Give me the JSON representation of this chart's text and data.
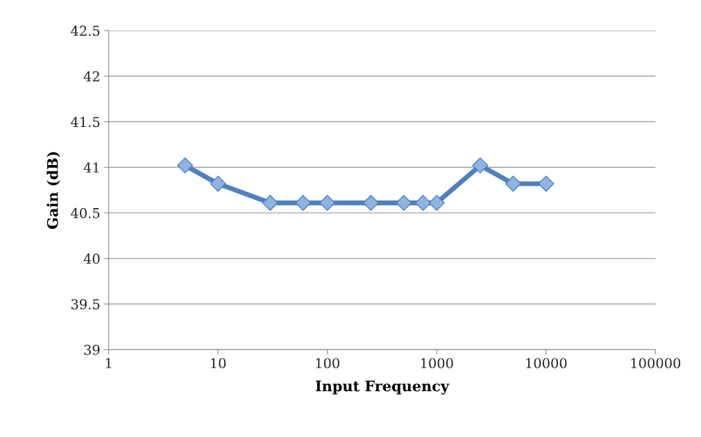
{
  "chart_data": {
    "type": "line",
    "xlabel": "Input Frequency",
    "ylabel": "Gain (dB)",
    "log": "x",
    "x": [
      5,
      10,
      30,
      60,
      100,
      250,
      500,
      750,
      1000,
      2500,
      5000,
      10000
    ],
    "series": [
      {
        "color": "#4f81bd",
        "values": [
          41.02,
          40.82,
          40.61,
          40.61,
          40.61,
          40.61,
          40.61,
          40.61,
          40.61,
          41.02,
          40.82,
          40.82
        ]
      }
    ],
    "xlim": [
      1,
      100000
    ],
    "xticks": [
      1,
      10,
      100,
      1000,
      10000,
      100000
    ],
    "ylim": [
      39,
      42.5
    ],
    "yticks": [
      39,
      39.5,
      40,
      40.5,
      41,
      41.5,
      42,
      42.5
    ],
    "grid": "y",
    "marker": "diamond",
    "line_style": "solid"
  }
}
